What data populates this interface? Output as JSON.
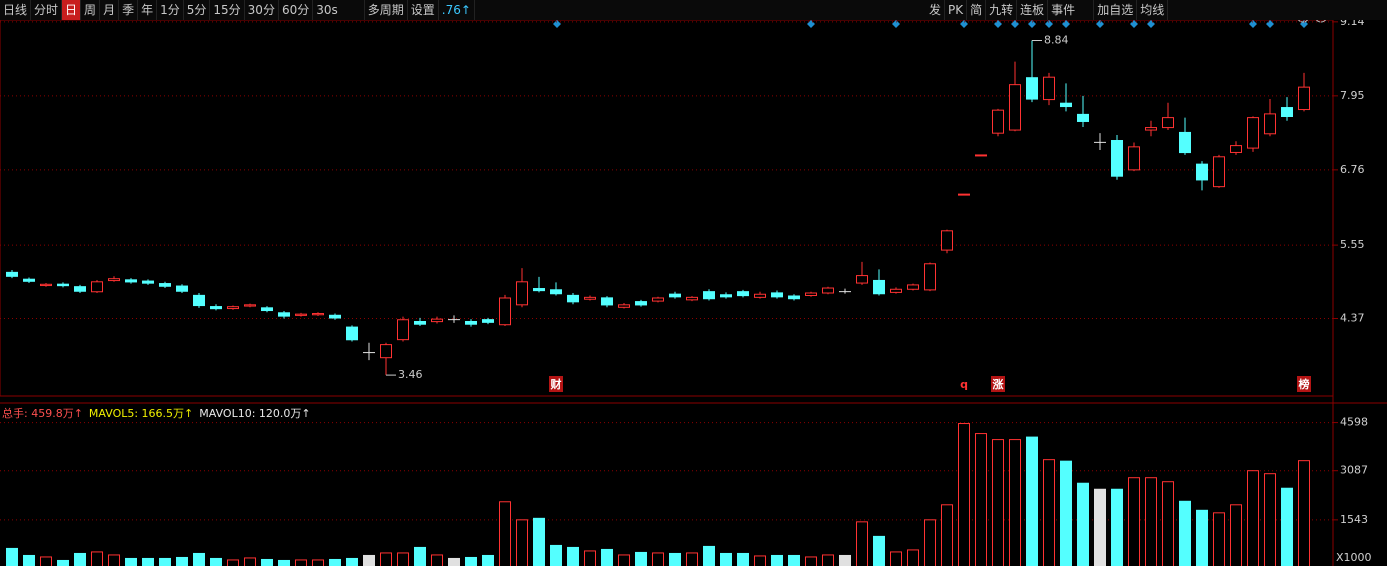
{
  "toolbar": {
    "left": [
      "日线",
      "分时",
      "日",
      "周",
      "月",
      "季",
      "年",
      "1分",
      "5分",
      "15分",
      "30分",
      "60分",
      "30s",
      "多周期",
      "设置",
      ".76↑"
    ],
    "right": [
      "发",
      "PK",
      "简",
      "九转",
      "连板",
      "事件",
      "加自选",
      "均线"
    ]
  },
  "chart_data": [
    {
      "type": "candlestick",
      "open": [
        5.12,
        5.01,
        4.9,
        4.93,
        4.89,
        4.8,
        4.98,
        5.0,
        4.98,
        4.94,
        4.9,
        4.75,
        4.57,
        4.53,
        4.57,
        4.55,
        4.47,
        4.42,
        4.43,
        4.43,
        4.24,
        3.83,
        3.74,
        4.03,
        4.33,
        4.32,
        4.36,
        4.33,
        4.36,
        4.27,
        4.59,
        4.86,
        4.84,
        4.75,
        4.68,
        4.71,
        4.55,
        4.65,
        4.65,
        4.77,
        4.67,
        4.81,
        4.76,
        4.81,
        4.71,
        4.79,
        4.74,
        4.74,
        4.78,
        4.81,
        4.94,
        4.99,
        4.79,
        4.84,
        4.83,
        5.47,
        6.37,
        7.0,
        7.35,
        7.4,
        8.25,
        7.89,
        7.84,
        7.66,
        7.21,
        7.24,
        6.76,
        7.4,
        7.44,
        7.37,
        6.86,
        6.49,
        7.04,
        7.11,
        7.34,
        7.77,
        7.73
      ],
      "high": [
        5.15,
        5.03,
        4.94,
        4.95,
        4.91,
        4.99,
        5.05,
        5.02,
        5.0,
        4.96,
        4.92,
        4.78,
        4.6,
        4.58,
        4.61,
        4.57,
        4.49,
        4.46,
        4.47,
        4.45,
        4.26,
        3.98,
        3.98,
        4.4,
        4.38,
        4.4,
        4.42,
        4.36,
        4.38,
        4.75,
        5.18,
        5.04,
        4.95,
        4.78,
        4.74,
        4.73,
        4.62,
        4.67,
        4.72,
        4.8,
        4.73,
        4.84,
        4.79,
        4.83,
        4.8,
        4.82,
        4.76,
        4.8,
        4.88,
        4.85,
        5.28,
        5.16,
        4.87,
        4.93,
        5.27,
        5.8,
        6.37,
        7.0,
        7.74,
        8.5,
        8.84,
        8.32,
        8.15,
        7.95,
        7.35,
        7.32,
        7.2,
        7.55,
        7.84,
        7.6,
        6.9,
        7.0,
        7.22,
        7.62,
        7.9,
        7.93,
        8.32
      ],
      "low": [
        5.02,
        4.94,
        4.88,
        4.87,
        4.78,
        4.78,
        4.96,
        4.93,
        4.91,
        4.86,
        4.78,
        4.54,
        4.5,
        4.51,
        4.55,
        4.47,
        4.37,
        4.4,
        4.41,
        4.35,
        4.0,
        3.7,
        3.46,
        4.0,
        4.25,
        4.29,
        4.3,
        4.24,
        4.28,
        4.25,
        4.55,
        4.79,
        4.74,
        4.6,
        4.66,
        4.55,
        4.53,
        4.56,
        4.63,
        4.69,
        4.65,
        4.66,
        4.69,
        4.71,
        4.69,
        4.69,
        4.66,
        4.72,
        4.76,
        4.77,
        4.91,
        4.74,
        4.77,
        4.82,
        4.81,
        5.42,
        6.37,
        7.0,
        7.3,
        7.38,
        7.85,
        7.8,
        7.7,
        7.45,
        7.08,
        6.6,
        6.74,
        7.3,
        7.4,
        7.0,
        6.43,
        6.47,
        7.0,
        7.05,
        7.3,
        7.55,
        7.7
      ],
      "close": [
        5.04,
        4.96,
        4.92,
        4.89,
        4.8,
        4.96,
        5.01,
        4.95,
        4.93,
        4.88,
        4.8,
        4.57,
        4.52,
        4.56,
        4.59,
        4.49,
        4.4,
        4.44,
        4.45,
        4.37,
        4.02,
        3.83,
        3.95,
        4.35,
        4.27,
        4.36,
        4.36,
        4.27,
        4.3,
        4.7,
        4.96,
        4.81,
        4.76,
        4.63,
        4.71,
        4.58,
        4.59,
        4.58,
        4.7,
        4.71,
        4.71,
        4.68,
        4.71,
        4.73,
        4.76,
        4.71,
        4.68,
        4.78,
        4.86,
        4.81,
        5.06,
        4.76,
        4.84,
        4.91,
        5.25,
        5.78,
        6.37,
        7.0,
        7.72,
        8.13,
        7.89,
        8.25,
        7.77,
        7.53,
        7.21,
        6.65,
        7.13,
        7.44,
        7.6,
        7.03,
        6.59,
        6.97,
        7.15,
        7.6,
        7.66,
        7.61,
        8.09
      ],
      "events": [
        null,
        null,
        null,
        null,
        null,
        null,
        null,
        null,
        null,
        null,
        null,
        null,
        null,
        null,
        null,
        null,
        null,
        null,
        null,
        null,
        null,
        null,
        null,
        null,
        null,
        null,
        null,
        null,
        null,
        null,
        null,
        null,
        "财",
        null,
        null,
        null,
        null,
        null,
        null,
        null,
        null,
        null,
        null,
        null,
        null,
        null,
        null,
        null,
        null,
        null,
        null,
        null,
        null,
        null,
        null,
        null,
        "q",
        null,
        "涨",
        null,
        null,
        null,
        null,
        null,
        null,
        null,
        null,
        null,
        null,
        null,
        null,
        null,
        null,
        null,
        null,
        null,
        "榜"
      ],
      "up_color": "#ff3232",
      "down_color": "#54ffff",
      "flat_color": "#e0e0e0",
      "ylim": [
        3.14,
        9.25
      ],
      "yticks": [
        9.14,
        7.95,
        6.76,
        5.55,
        4.37
      ],
      "grid": true
    },
    {
      "type": "bar",
      "legend": [
        "总手: 459.8万↑",
        "MAVOL5: 166.5万↑",
        "MAVOL10: 120.0万↑"
      ],
      "values": [
        662,
        441,
        378,
        284,
        504,
        536,
        441,
        347,
        347,
        347,
        378,
        504,
        347,
        284,
        347,
        315,
        284,
        284,
        284,
        315,
        347,
        441,
        504,
        504,
        693,
        441,
        347,
        378,
        441,
        2111,
        1544,
        1607,
        756,
        693,
        567,
        630,
        441,
        536,
        504,
        504,
        504,
        725,
        504,
        504,
        410,
        441,
        441,
        378,
        441,
        441,
        1481,
        1040,
        536,
        599,
        1544,
        2016,
        4568,
        4253,
        4064,
        4064,
        4158,
        3434,
        3402,
        2709,
        2520,
        2520,
        2867,
        2867,
        2741,
        2142,
        1859,
        1764,
        2016,
        3087,
        2993,
        2552,
        3402
      ],
      "unit_label": "X1000",
      "ylim": [
        0,
        5150
      ],
      "yticks": [
        4598,
        3087,
        1543
      ],
      "grid": true
    }
  ]
}
